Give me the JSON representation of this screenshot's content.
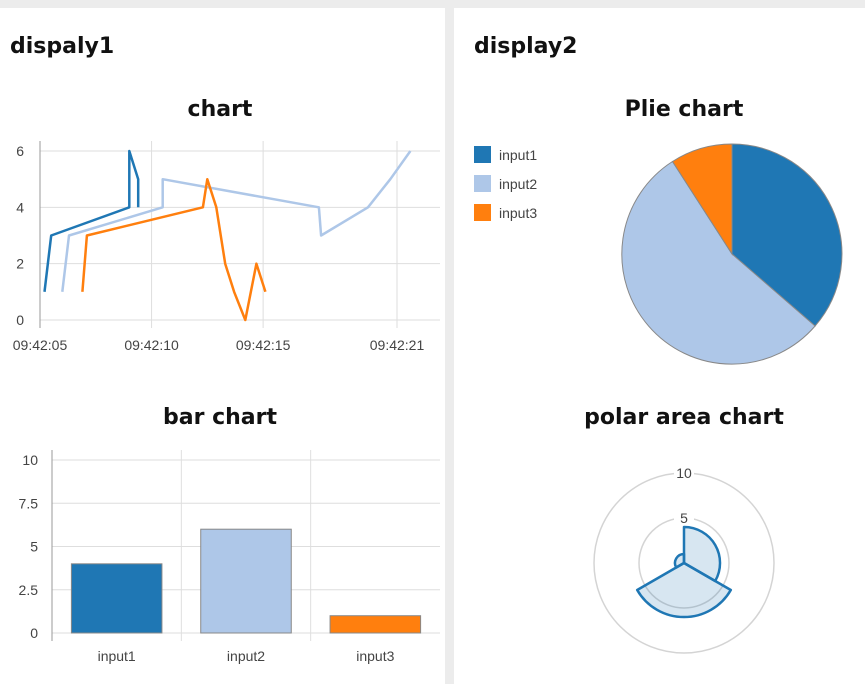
{
  "panel1": {
    "title": "dispaly1"
  },
  "panel2": {
    "title": "display2"
  },
  "colors": {
    "input1": "#1f77b4",
    "input2": "#aec7e8",
    "input3": "#ff7f0e"
  },
  "chart_data": [
    {
      "id": "line",
      "type": "line",
      "title": "chart",
      "xlabel": "",
      "ylabel": "",
      "ylim": [
        0,
        6
      ],
      "yticks": [
        0,
        2,
        4,
        6
      ],
      "xticks": [
        "09:42:05",
        "09:42:10",
        "09:42:15",
        "09:42:21"
      ],
      "grid": true,
      "series": [
        {
          "name": "input1",
          "x": [
            "09:42:05.2",
            "09:42:05.5",
            "09:42:09.0",
            "09:42:09.0",
            "09:42:09.4",
            "09:42:09.4"
          ],
          "y": [
            1,
            3,
            4,
            6,
            5,
            4
          ]
        },
        {
          "name": "input2",
          "x": [
            "09:42:06.0",
            "09:42:06.3",
            "09:42:10.5",
            "09:42:10.5",
            "09:42:17.5",
            "09:42:17.6",
            "09:42:19.7",
            "09:42:20.7",
            "09:42:21.6"
          ],
          "y": [
            1,
            3,
            4,
            5,
            4,
            3,
            4,
            5,
            6
          ]
        },
        {
          "name": "input3",
          "x": [
            "09:42:06.9",
            "09:42:07.1",
            "09:42:12.3",
            "09:42:12.5",
            "09:42:12.9",
            "09:42:13.3",
            "09:42:13.7",
            "09:42:14.2",
            "09:42:14.7",
            "09:42:15.1"
          ],
          "y": [
            1,
            3,
            4,
            5,
            4,
            2,
            1,
            0,
            2,
            1
          ]
        }
      ]
    },
    {
      "id": "pie",
      "type": "pie",
      "title": "Plie chart",
      "legend": "top-left",
      "categories": [
        "input1",
        "input2",
        "input3"
      ],
      "values": [
        4,
        6,
        1
      ]
    },
    {
      "id": "bar",
      "type": "bar",
      "title": "bar chart",
      "categories": [
        "input1",
        "input2",
        "input3"
      ],
      "values": [
        4,
        6,
        1
      ],
      "ylim": [
        0,
        10
      ],
      "yticks": [
        "0",
        "2.5",
        "5",
        "7.5",
        "10"
      ],
      "grid": true
    },
    {
      "id": "polar",
      "type": "polarArea",
      "title": "polar area chart",
      "categories": [
        "input1",
        "input2",
        "input3"
      ],
      "values": [
        4,
        6,
        1
      ],
      "rmax": 10,
      "rticks": [
        "5",
        "10"
      ]
    }
  ]
}
